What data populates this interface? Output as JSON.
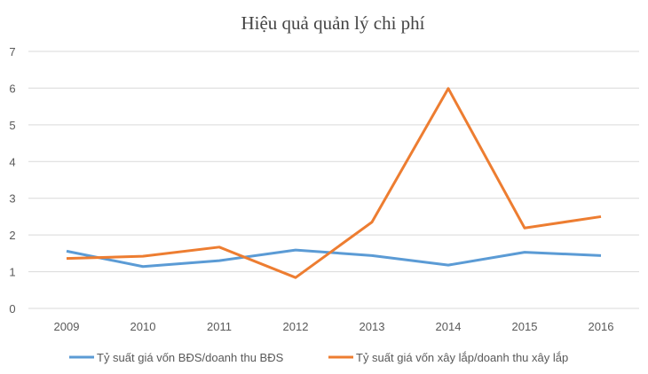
{
  "chart_data": {
    "type": "line",
    "title": "Hiệu quả quản lý chi phí",
    "xlabel": "",
    "ylabel": "",
    "categories": [
      "2009",
      "2010",
      "2011",
      "2012",
      "2013",
      "2014",
      "2015",
      "2016"
    ],
    "ylim": [
      0,
      7
    ],
    "yticks": [
      "0",
      "1",
      "2",
      "3",
      "4",
      "5",
      "6",
      "7"
    ],
    "grid": true,
    "legend_position": "bottom",
    "series": [
      {
        "name": "Tỷ suất giá vốn BĐS/doanh thu BĐS",
        "color": "#5B9BD5",
        "values": [
          1.56,
          1.14,
          1.3,
          1.59,
          1.44,
          1.18,
          1.53,
          1.44
        ]
      },
      {
        "name": "Tỷ suất giá vốn xây lắp/doanh thu xây lắp",
        "color": "#ED7D31",
        "values": [
          1.36,
          1.42,
          1.67,
          0.84,
          2.35,
          5.99,
          2.19,
          2.5
        ]
      }
    ]
  }
}
